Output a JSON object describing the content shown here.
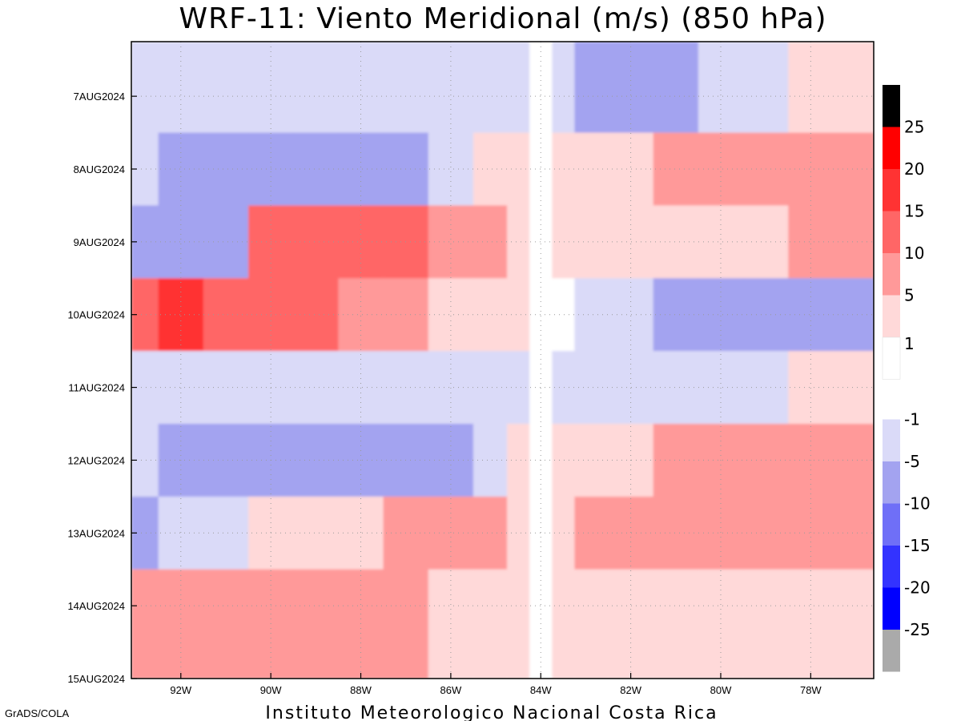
{
  "chart_data": {
    "type": "heatmap",
    "title": "WRF-11: Viento Meridional (m/s) (850 hPa)",
    "xlabel": "",
    "ylabel": "",
    "x_ticks": [
      "92W",
      "90W",
      "88W",
      "86W",
      "84W",
      "82W",
      "80W",
      "78W"
    ],
    "x_tick_values": [
      -92,
      -90,
      -88,
      -86,
      -84,
      -82,
      -80,
      -78
    ],
    "xlim": [
      -93.1,
      -76.6
    ],
    "y_ticks": [
      "7AUG2024",
      "8AUG2024",
      "9AUG2024",
      "10AUG2024",
      "11AUG2024",
      "12AUG2024",
      "13AUG2024",
      "14AUG2024",
      "15AUG2024"
    ],
    "y_tick_values": [
      0.75,
      1.75,
      2.75,
      3.75,
      4.75,
      5.75,
      6.75,
      7.75,
      8.75
    ],
    "ylim": [
      0,
      8.75
    ],
    "grid": true,
    "colorbar": {
      "labels": [
        "25",
        "20",
        "15",
        "10",
        "5",
        "1",
        "-1",
        "-5",
        "-10",
        "-15",
        "-20",
        "-25"
      ],
      "colors": [
        "#000000",
        "#ff0000",
        "#ff3333",
        "#ff6666",
        "#ff9999",
        "#ffd9d9",
        "#ffffff",
        "#dadaf8",
        "#a3a3f0",
        "#6f6ff7",
        "#3333ff",
        "#0000ff",
        "#aaaaaa"
      ]
    },
    "lon": [
      -93,
      -92,
      -91,
      -90,
      -89,
      -88,
      -87,
      -86,
      -85,
      -84.5,
      -84,
      -83.5,
      -83,
      -82,
      -81,
      -80,
      -79,
      -78,
      -77
    ],
    "time": [
      "7AUG2024",
      "8AUG2024",
      "9AUG2024",
      "10AUG2024",
      "11AUG2024",
      "12AUG2024",
      "13AUG2024",
      "14AUG2024"
    ],
    "values": [
      [
        -3,
        -3,
        -3,
        -3,
        -3,
        -3,
        -2,
        -3,
        -3,
        -2,
        0,
        -3,
        -5,
        -6,
        -5,
        -3,
        -2,
        1,
        2
      ],
      [
        -4,
        -6,
        -7,
        -8,
        -7,
        -7,
        -5,
        -3,
        2,
        4,
        0,
        1,
        2,
        3,
        5,
        7,
        6,
        7,
        8
      ],
      [
        -6,
        -5,
        -9,
        14,
        12,
        11,
        10,
        6,
        5,
        4,
        0,
        1,
        2,
        2,
        3,
        4,
        4,
        5,
        6
      ],
      [
        14,
        15,
        13,
        11,
        10,
        8,
        6,
        4,
        3,
        2,
        0,
        0,
        -3,
        -4,
        -6,
        -7,
        -8,
        -8,
        -6
      ],
      [
        -2,
        -3,
        -3,
        -3,
        -3,
        -3,
        -4,
        -4,
        -3,
        -1,
        0,
        -1,
        -2,
        -3,
        -3,
        -4,
        -3,
        2,
        3
      ],
      [
        -4,
        -8,
        -7,
        -7,
        -7,
        -6,
        -7,
        -8,
        -4,
        1,
        0,
        2,
        3,
        4,
        5,
        5,
        5,
        6,
        7
      ],
      [
        -5,
        -3,
        -2,
        1,
        2,
        4,
        5,
        6,
        7,
        3,
        0,
        1,
        6,
        7,
        7,
        8,
        8,
        7,
        5
      ],
      [
        6,
        5,
        5,
        5,
        6,
        6,
        5,
        4,
        2,
        1,
        0,
        2,
        3,
        3,
        3,
        2,
        2,
        3,
        3
      ]
    ],
    "credit": "GrADS/COLA",
    "footer": "Instituto Meteorologico Nacional Costa Rica"
  }
}
